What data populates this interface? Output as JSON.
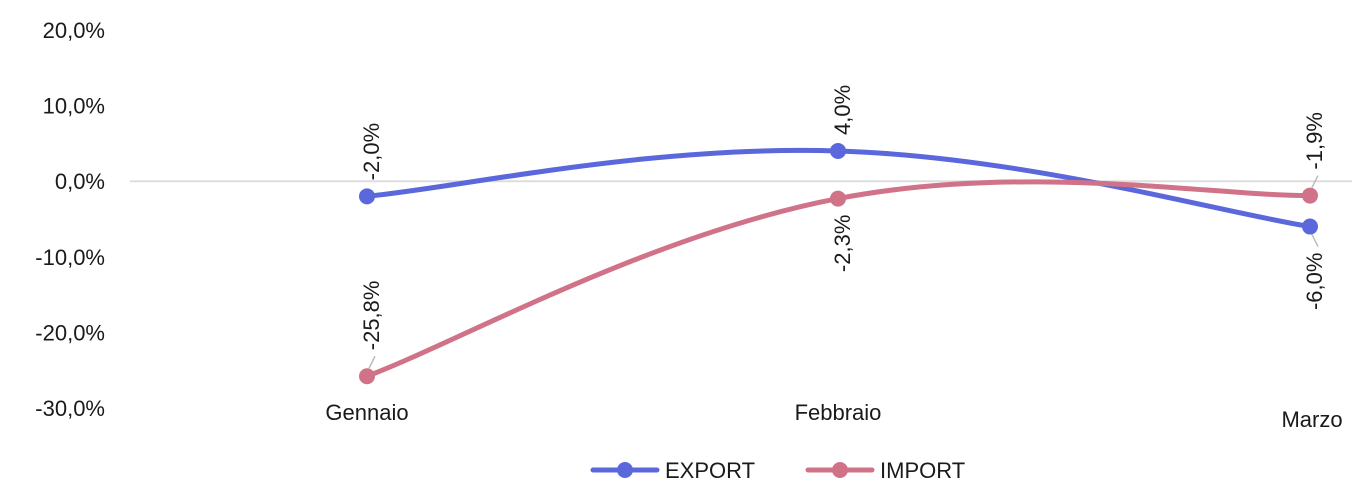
{
  "chart_data": {
    "type": "line",
    "categories": [
      "Gennaio",
      "Febbraio",
      "Marzo"
    ],
    "ylim": [
      -30,
      20
    ],
    "yticks": [
      20,
      10,
      0,
      -10,
      -20,
      -30
    ],
    "ytick_labels": [
      "20,0%",
      "10,0%",
      "0,0%",
      "-10,0%",
      "-20,0%",
      "-30,0%"
    ],
    "grid": "zero-line only",
    "legend_position": "bottom-center",
    "series": [
      {
        "name": "EXPORT",
        "color": "#5b68dc",
        "values": [
          -2.0,
          4.0,
          -6.0
        ],
        "labels": [
          "-2,0%",
          "4,0%",
          "-6,0%"
        ]
      },
      {
        "name": "IMPORT",
        "color": "#d07389",
        "values": [
          -25.8,
          -2.3,
          -1.9
        ],
        "labels": [
          "-25,8%",
          "-2,3%",
          "-1,9%"
        ]
      }
    ]
  }
}
